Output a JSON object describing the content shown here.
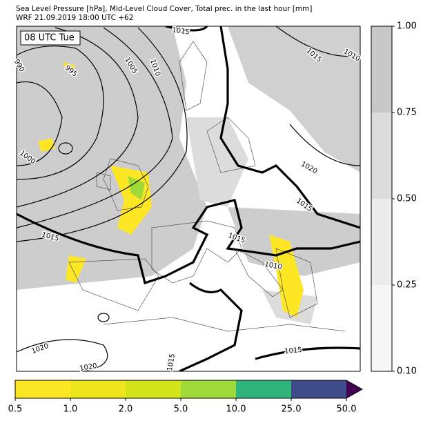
{
  "header": {
    "title": "Sea Level Pressure [hPa], Mid-Level Cloud Cover, Total prec. in the last hour [mm]",
    "subtitle": "WRF 21.09.2019 18:00 UTC +62"
  },
  "map": {
    "time_label": "08 UTC Tue",
    "isobar_labels": [
      "1015",
      "1015",
      "1010",
      "990",
      "995",
      "1005",
      "1010",
      "1000",
      "1020",
      "1015",
      "1015",
      "1015",
      "1010",
      "1020",
      "1020",
      "1015",
      "1015"
    ]
  },
  "cloud_colorbar": {
    "colors": [
      "#f7f7f7",
      "#ececec",
      "#dcdcdc",
      "#c8c8c8"
    ],
    "ticks": [
      {
        "value": 0.1,
        "label": "0.10"
      },
      0.25,
      {
        "value": 0.5,
        "label": "0.50"
      },
      0.75,
      {
        "value": 1,
        "label": "1.00"
      }
    ]
  },
  "precip_colorbar": {
    "colors": [
      "#fde725",
      "#efe51c",
      "#d2e21b",
      "#a0da39",
      "#2fb47c",
      "#3e4c8a"
    ],
    "extend_color": "#440154",
    "ticks": [
      0.5,
      {
        "value": 1,
        "label": "1.0"
      },
      {
        "value": 2,
        "label": "2.0"
      },
      {
        "value": 5,
        "label": "5.0"
      },
      {
        "value": 10,
        "label": "10.0"
      },
      {
        "value": 25,
        "label": "25.0"
      },
      {
        "value": 50,
        "label": "50.0"
      }
    ]
  }
}
